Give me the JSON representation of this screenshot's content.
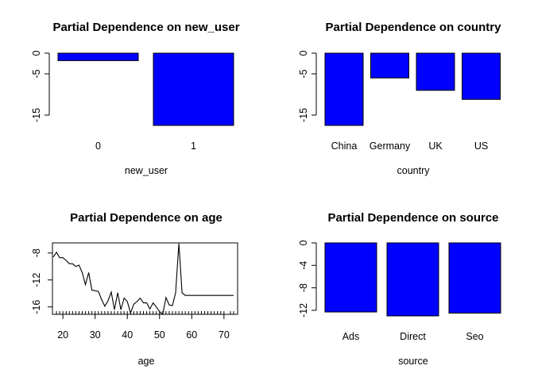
{
  "chart_data": [
    {
      "type": "bar",
      "title": "Partial Dependence on new_user",
      "xlabel": "new_user",
      "ylabel": "",
      "categories": [
        "0",
        "1"
      ],
      "values": [
        -1.8,
        -17.5
      ],
      "yticks": [
        0,
        -5,
        -15
      ],
      "ylim": [
        -17.5,
        0
      ],
      "bar_color": "#0000ff"
    },
    {
      "type": "bar",
      "title": "Partial Dependence on country",
      "xlabel": "country",
      "ylabel": "",
      "categories": [
        "China",
        "Germany",
        "UK",
        "US"
      ],
      "values": [
        -17.5,
        -6.0,
        -9.0,
        -11.2
      ],
      "yticks": [
        0,
        -5,
        -15
      ],
      "ylim": [
        -17.5,
        0
      ],
      "bar_color": "#0000ff"
    },
    {
      "type": "line",
      "title": "Partial Dependence on age",
      "xlabel": "age",
      "ylabel": "",
      "xticks": [
        20,
        30,
        40,
        50,
        60,
        70
      ],
      "yticks": [
        -8,
        -12,
        -16
      ],
      "xlim": [
        17,
        73
      ],
      "ylim": [
        -17.1,
        -6.5
      ],
      "x": [
        17,
        18,
        19,
        20,
        21,
        22,
        23,
        24,
        25,
        26,
        27,
        28,
        29,
        30,
        31,
        32,
        33,
        34,
        35,
        36,
        37,
        38,
        39,
        40,
        41,
        42,
        43,
        44,
        45,
        46,
        47,
        48,
        49,
        50,
        51,
        52,
        53,
        54,
        55,
        56,
        57,
        58,
        59,
        60,
        61,
        62,
        63,
        64,
        65,
        66,
        67,
        68,
        69,
        70,
        71,
        72,
        73
      ],
      "y": [
        -8.6,
        -7.9,
        -8.7,
        -8.7,
        -9.1,
        -9.6,
        -9.6,
        -10.0,
        -9.8,
        -10.9,
        -12.7,
        -10.9,
        -13.5,
        -13.6,
        -13.7,
        -14.9,
        -15.9,
        -15.1,
        -13.8,
        -16.4,
        -13.9,
        -16.4,
        -14.7,
        -15.2,
        -16.9,
        -15.6,
        -15.2,
        -14.7,
        -15.4,
        -15.4,
        -16.3,
        -15.4,
        -16.0,
        -16.7,
        -17.1,
        -14.6,
        -15.7,
        -15.8,
        -13.9,
        -6.6,
        -13.9,
        -14.3,
        -14.3,
        -14.3,
        -14.3,
        -14.3,
        -14.3,
        -14.3,
        -14.3,
        -14.3,
        -14.3,
        -14.3,
        -14.3,
        -14.3,
        -14.3,
        -14.3,
        -14.3
      ],
      "rug": [
        18,
        19,
        20,
        21,
        22,
        23,
        24,
        25,
        26,
        27,
        28,
        29,
        30,
        31,
        32,
        33,
        34,
        35,
        36,
        37,
        38,
        39,
        40,
        41,
        42,
        43,
        44,
        45,
        46,
        47,
        48,
        49,
        50,
        51,
        52,
        53,
        54,
        55,
        56,
        57,
        58,
        59,
        60,
        61,
        62,
        63,
        64,
        65,
        66,
        67,
        68,
        69,
        70,
        72,
        73
      ]
    },
    {
      "type": "bar",
      "title": "Partial Dependence on source",
      "xlabel": "source",
      "ylabel": "",
      "categories": [
        "Ads",
        "Direct",
        "Seo"
      ],
      "values": [
        -12.3,
        -13.0,
        -12.5
      ],
      "yticks": [
        0,
        -4,
        -8,
        -12
      ],
      "ylim": [
        -13.0,
        0
      ],
      "bar_color": "#0000ff"
    }
  ]
}
